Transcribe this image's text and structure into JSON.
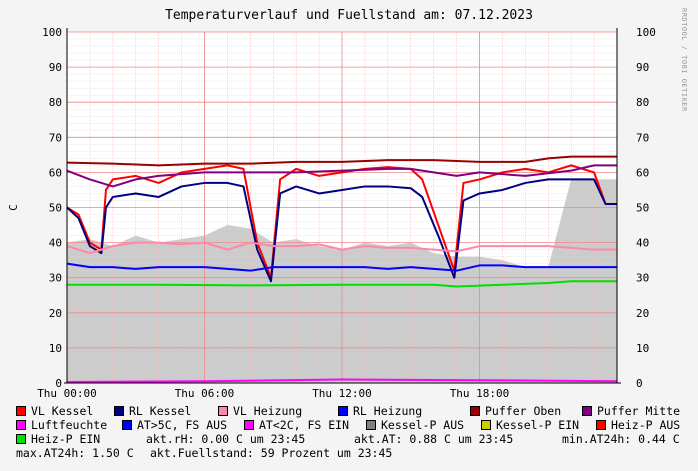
{
  "title": "Temperaturverlauf und Fuellstand am: 07.12.2023",
  "side_label": "RRDTOOL / TOBI OETIKER",
  "chart_data": {
    "type": "line",
    "ylabel": "C",
    "ylim": [
      0,
      100
    ],
    "y_ticks": [
      "0",
      "10",
      "20",
      "30",
      "40",
      "50",
      "60",
      "70",
      "80",
      "90",
      "100"
    ],
    "x_ticks": [
      {
        "label": "Thu 00:00",
        "h": 0
      },
      {
        "label": "Thu 06:00",
        "h": 6
      },
      {
        "label": "Thu 12:00",
        "h": 12
      },
      {
        "label": "Thu 18:00",
        "h": 18
      }
    ],
    "x_range_hours": [
      0,
      24
    ],
    "series": [
      {
        "name": "VL Kessel",
        "color": "#ff0000",
        "points": [
          [
            0,
            50
          ],
          [
            0.5,
            48
          ],
          [
            1,
            40
          ],
          [
            1.5,
            38
          ],
          [
            1.7,
            55
          ],
          [
            2,
            58
          ],
          [
            3,
            59
          ],
          [
            4,
            57
          ],
          [
            5,
            60
          ],
          [
            6,
            61
          ],
          [
            7,
            62
          ],
          [
            7.7,
            61
          ],
          [
            8.3,
            40
          ],
          [
            8.9,
            30
          ],
          [
            9.3,
            58
          ],
          [
            10,
            61
          ],
          [
            11,
            59
          ],
          [
            12,
            60
          ],
          [
            13,
            61
          ],
          [
            14,
            61.5
          ],
          [
            15,
            61
          ],
          [
            15.5,
            58
          ],
          [
            16.2,
            45
          ],
          [
            16.9,
            32
          ],
          [
            17.3,
            57
          ],
          [
            18,
            58
          ],
          [
            19,
            60
          ],
          [
            20,
            61
          ],
          [
            21,
            60
          ],
          [
            22,
            62
          ],
          [
            23,
            60
          ],
          [
            23.5,
            51
          ],
          [
            24,
            51
          ]
        ]
      },
      {
        "name": "RL Kessel",
        "color": "#000080",
        "points": [
          [
            0,
            50
          ],
          [
            0.5,
            47
          ],
          [
            1,
            39
          ],
          [
            1.5,
            37
          ],
          [
            1.7,
            50
          ],
          [
            2,
            53
          ],
          [
            3,
            54
          ],
          [
            4,
            53
          ],
          [
            5,
            56
          ],
          [
            6,
            57
          ],
          [
            7,
            57
          ],
          [
            7.7,
            56
          ],
          [
            8.3,
            38
          ],
          [
            8.9,
            29
          ],
          [
            9.3,
            54
          ],
          [
            10,
            56
          ],
          [
            11,
            54
          ],
          [
            12,
            55
          ],
          [
            13,
            56
          ],
          [
            14,
            56
          ],
          [
            15,
            55.5
          ],
          [
            15.5,
            53
          ],
          [
            16.2,
            42
          ],
          [
            16.9,
            30
          ],
          [
            17.3,
            52
          ],
          [
            18,
            54
          ],
          [
            19,
            55
          ],
          [
            20,
            57
          ],
          [
            21,
            58
          ],
          [
            22,
            58
          ],
          [
            23,
            58
          ],
          [
            23.5,
            51
          ],
          [
            24,
            51
          ]
        ]
      },
      {
        "name": "VL Heizung",
        "color": "#ff88aa",
        "points": [
          [
            0,
            39
          ],
          [
            1,
            37
          ],
          [
            2,
            39
          ],
          [
            3,
            40
          ],
          [
            4,
            40
          ],
          [
            5,
            39.5
          ],
          [
            6,
            40
          ],
          [
            7,
            38
          ],
          [
            8,
            40
          ],
          [
            9,
            39
          ],
          [
            10,
            39
          ],
          [
            11,
            39.5
          ],
          [
            12,
            38
          ],
          [
            13,
            39
          ],
          [
            14,
            38.5
          ],
          [
            15,
            38.5
          ],
          [
            16,
            38
          ],
          [
            17,
            37.5
          ],
          [
            18,
            39
          ],
          [
            19,
            39
          ],
          [
            20,
            39
          ],
          [
            21,
            39
          ],
          [
            22,
            38.5
          ],
          [
            23,
            38
          ],
          [
            24,
            38
          ]
        ]
      },
      {
        "name": "RL Heizung",
        "color": "#0000ff",
        "points": [
          [
            0,
            34
          ],
          [
            1,
            33
          ],
          [
            2,
            33
          ],
          [
            3,
            32.5
          ],
          [
            4,
            33
          ],
          [
            5,
            33
          ],
          [
            6,
            33
          ],
          [
            7,
            32.5
          ],
          [
            8,
            32
          ],
          [
            9,
            33
          ],
          [
            10,
            33
          ],
          [
            11,
            33
          ],
          [
            12,
            33
          ],
          [
            13,
            33
          ],
          [
            14,
            32.5
          ],
          [
            15,
            33
          ],
          [
            16,
            32.5
          ],
          [
            17,
            32
          ],
          [
            18,
            33.5
          ],
          [
            19,
            33.5
          ],
          [
            20,
            33
          ],
          [
            21,
            33
          ],
          [
            22,
            33
          ],
          [
            23,
            33
          ],
          [
            24,
            33
          ]
        ]
      },
      {
        "name": "Puffer Oben",
        "color": "#990000",
        "points": [
          [
            0,
            62.8
          ],
          [
            2,
            62.5
          ],
          [
            4,
            62
          ],
          [
            6,
            62.5
          ],
          [
            8,
            62.5
          ],
          [
            10,
            63
          ],
          [
            12,
            63
          ],
          [
            14,
            63.5
          ],
          [
            16,
            63.5
          ],
          [
            18,
            63
          ],
          [
            20,
            63
          ],
          [
            21,
            64
          ],
          [
            22,
            64.5
          ],
          [
            24,
            64.5
          ]
        ]
      },
      {
        "name": "Puffer Mitte",
        "color": "#800080",
        "points": [
          [
            0,
            60.5
          ],
          [
            1,
            58
          ],
          [
            2,
            56
          ],
          [
            3,
            58
          ],
          [
            4,
            59
          ],
          [
            6,
            60
          ],
          [
            8,
            60
          ],
          [
            10,
            60
          ],
          [
            12,
            60.5
          ],
          [
            14,
            61
          ],
          [
            15,
            61
          ],
          [
            16,
            60
          ],
          [
            17,
            59
          ],
          [
            18,
            60
          ],
          [
            20,
            59
          ],
          [
            22,
            60.5
          ],
          [
            23,
            62
          ],
          [
            24,
            62
          ]
        ]
      },
      {
        "name": "Heiz-P EIN",
        "color": "#00e000",
        "points": [
          [
            0,
            28
          ],
          [
            4,
            28
          ],
          [
            8,
            27.8
          ],
          [
            12,
            28
          ],
          [
            16,
            28
          ],
          [
            17,
            27.5
          ],
          [
            19,
            28
          ],
          [
            21,
            28.5
          ],
          [
            22,
            29
          ],
          [
            24,
            29
          ]
        ]
      },
      {
        "name": "Luftfeuchte",
        "color": "#ff00ff",
        "points": [
          [
            0,
            0.3
          ],
          [
            6,
            0.5
          ],
          [
            12,
            1.0
          ],
          [
            18,
            0.8
          ],
          [
            24,
            0.5
          ]
        ]
      }
    ],
    "fill_area": {
      "name": "Fuellstand",
      "color": "#cccccc",
      "points": [
        [
          0,
          40
        ],
        [
          1,
          41
        ],
        [
          2,
          39
        ],
        [
          3,
          42
        ],
        [
          4,
          40
        ],
        [
          5,
          41
        ],
        [
          6,
          42
        ],
        [
          7,
          45
        ],
        [
          8,
          44
        ],
        [
          9,
          40
        ],
        [
          10,
          41
        ],
        [
          11,
          39
        ],
        [
          12,
          38
        ],
        [
          13,
          40
        ],
        [
          14,
          39
        ],
        [
          15,
          40
        ],
        [
          16,
          37
        ],
        [
          17,
          36
        ],
        [
          18,
          36
        ],
        [
          19,
          35
        ],
        [
          20,
          33
        ],
        [
          21,
          33
        ],
        [
          22,
          58
        ],
        [
          23,
          58
        ],
        [
          24,
          58
        ]
      ]
    },
    "legend": [
      {
        "label": "VL Kessel",
        "color": "#ff0000"
      },
      {
        "label": "RL Kessel",
        "color": "#000080"
      },
      {
        "label": "VL Heizung",
        "color": "#ff88aa"
      },
      {
        "label": "RL Heizung",
        "color": "#0000ff"
      },
      {
        "label": "Puffer Oben",
        "color": "#990000"
      },
      {
        "label": "Puffer Mitte",
        "color": "#800080"
      },
      {
        "label": "Luftfeuchte",
        "color": "#ff00ff"
      },
      {
        "label": "AT>5C, FS AUS",
        "color": "#0000ff"
      },
      {
        "label": "AT<2C, FS EIN",
        "color": "#ff00ff"
      },
      {
        "label": "Kessel-P AUS",
        "color": "#808080"
      },
      {
        "label": "Kessel-P EIN",
        "color": "#cccc00"
      },
      {
        "label": "Heiz-P AUS",
        "color": "#ff0000"
      },
      {
        "label": "Heiz-P EIN",
        "color": "#00e000"
      }
    ]
  },
  "stats": {
    "akt_rh": "akt.rH: 0.00 C um 23:45",
    "akt_at": "akt.AT: 0.88 C um 23:45",
    "min_at24h": "min.AT24h: 0.44 C",
    "max_at24h": "max.AT24h: 1.50 C",
    "fuellstand": "akt.Fuellstand:   59 Prozent um 23:45"
  }
}
